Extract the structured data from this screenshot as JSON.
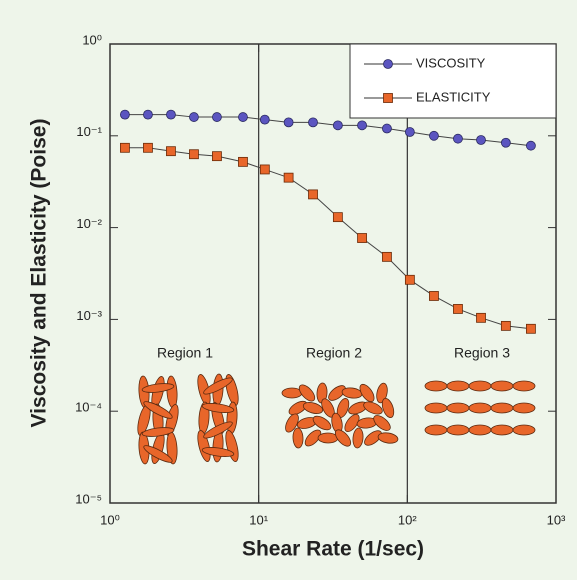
{
  "chart_data": {
    "type": "line",
    "x_label": "Shear Rate (1/sec)",
    "y_label": "Viscosity and Elasticity (Poise)",
    "x": [
      1.26,
      1.8,
      2.57,
      3.67,
      5.24,
      7.84,
      11,
      15.9,
      23.2,
      34.1,
      49.6,
      72.9,
      104,
      151,
      219,
      313,
      460,
      678
    ],
    "series": [
      {
        "name": "VISCOSITY",
        "color": "#5b55c0",
        "marker": "circle",
        "values": [
          0.17,
          0.17,
          0.17,
          0.16,
          0.16,
          0.16,
          0.15,
          0.14,
          0.14,
          0.13,
          0.13,
          0.12,
          0.11,
          0.1,
          0.093,
          0.09,
          0.084,
          0.078
        ]
      },
      {
        "name": "ELASTICITY",
        "color": "#e8662a",
        "marker": "square",
        "values": [
          0.074,
          0.074,
          0.068,
          0.063,
          0.06,
          0.052,
          0.043,
          0.035,
          0.023,
          0.013,
          0.0077,
          0.0048,
          0.0027,
          0.0018,
          0.0013,
          0.00104,
          0.00085,
          0.00079
        ]
      }
    ],
    "xlog": true,
    "ylog": true,
    "xlim": [
      1,
      1000
    ],
    "ylim": [
      1e-05,
      1
    ],
    "xticks": [
      {
        "value": 1,
        "label": "10⁰"
      },
      {
        "value": 10,
        "label": "10¹"
      },
      {
        "value": 100,
        "label": "10²"
      },
      {
        "value": 1000,
        "label": "10³"
      }
    ],
    "yticks": [
      {
        "value": 1,
        "label": "10⁰"
      },
      {
        "value": 0.1,
        "label": "10⁻¹"
      },
      {
        "value": 0.01,
        "label": "10⁻²"
      },
      {
        "value": 0.001,
        "label": "10⁻³"
      },
      {
        "value": 0.0001,
        "label": "10⁻⁴"
      },
      {
        "value": 1e-05,
        "label": "10⁻⁵"
      }
    ],
    "annotations": [
      "Region 1",
      "Region 2",
      "Region 3"
    ],
    "legend": "upper right"
  }
}
